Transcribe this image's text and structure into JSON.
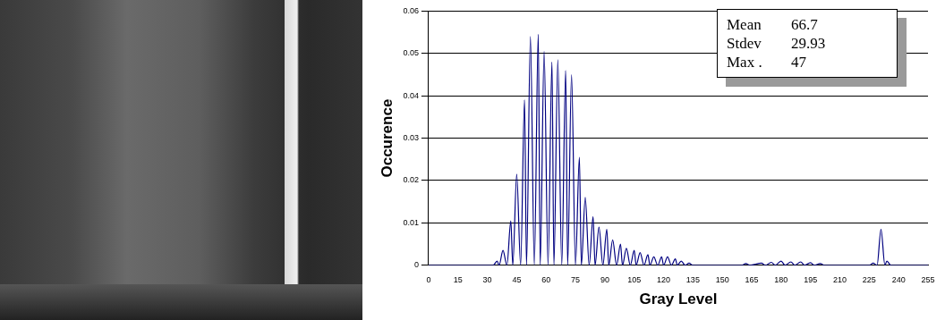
{
  "chart_data": {
    "type": "line",
    "xlabel": "Gray Level",
    "ylabel": "Occurence",
    "stats": [
      {
        "label": "Mean",
        "value": 66.7
      },
      {
        "label": "Stdev",
        "value": 29.93
      },
      {
        "label": "Max .",
        "value": 47
      }
    ],
    "color": "#000080",
    "grid": true,
    "xlim": [
      0,
      255
    ],
    "xticks": [
      0,
      15,
      30,
      45,
      60,
      75,
      90,
      105,
      120,
      135,
      150,
      165,
      180,
      195,
      210,
      225,
      240,
      255
    ],
    "ylim": [
      0,
      0.06
    ],
    "yticks": [
      0,
      0.01,
      0.02,
      0.03,
      0.04,
      0.05,
      0.06
    ],
    "x": [
      0,
      33,
      35,
      36,
      38,
      40,
      42,
      43,
      45,
      47,
      49,
      50,
      52,
      54,
      56,
      57,
      59,
      61,
      63,
      64,
      66,
      68,
      70,
      71,
      73,
      75,
      77,
      78,
      80,
      82,
      84,
      85,
      87,
      89,
      91,
      92,
      94,
      96,
      98,
      99,
      101,
      103,
      105,
      106,
      108,
      110,
      112,
      113,
      115,
      117,
      119,
      120,
      122,
      124,
      126,
      127,
      129,
      131,
      133,
      135,
      160,
      162,
      164,
      170,
      172,
      175,
      177,
      180,
      182,
      185,
      187,
      190,
      192,
      195,
      197,
      200,
      202,
      225,
      227,
      229,
      231,
      233,
      234,
      236,
      255
    ],
    "values": [
      0,
      0,
      0.001,
      0,
      0.0035,
      0,
      0.0105,
      0,
      0.0215,
      0,
      0.039,
      0,
      0.054,
      0,
      0.0545,
      0,
      0.0505,
      0,
      0.048,
      0,
      0.0485,
      0,
      0.046,
      0,
      0.045,
      0,
      0.0255,
      0,
      0.016,
      0,
      0.0115,
      0,
      0.009,
      0,
      0.0085,
      0,
      0.006,
      0,
      0.005,
      0,
      0.004,
      0,
      0.0035,
      0,
      0.003,
      0,
      0.0025,
      0,
      0.002,
      0,
      0.002,
      0,
      0.002,
      0,
      0.0015,
      0,
      0.001,
      0,
      0.0005,
      0,
      0,
      0.0004,
      0,
      0.0005,
      0,
      0.0007,
      0,
      0.001,
      0,
      0.0008,
      0,
      0.0008,
      0,
      0.0006,
      0,
      0.0004,
      0,
      0,
      0.0005,
      0,
      0.0085,
      0,
      0.001,
      0,
      0
    ]
  }
}
